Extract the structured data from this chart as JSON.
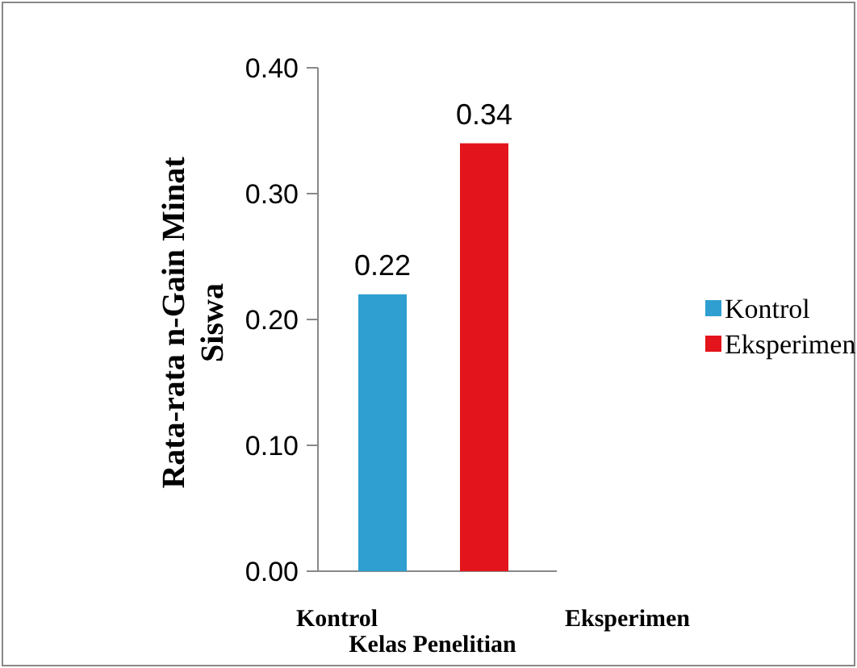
{
  "chart_data": {
    "type": "bar",
    "xlabel": "Kelas Penelitian",
    "ylabel": "Rata-rata  n-Gain Minat Siswa",
    "categories": [
      "Kontrol",
      "Eksperimen"
    ],
    "series": [
      {
        "name": "Kontrol",
        "color": "#2e9fd0",
        "values": [
          0.22,
          null
        ]
      },
      {
        "name": "Eksperimen",
        "color": "#e3141b",
        "values": [
          null,
          0.34
        ]
      }
    ],
    "ylim": [
      0,
      0.4
    ],
    "yticks": [
      {
        "value": 0,
        "label": "0.00"
      },
      {
        "value": 0.1,
        "label": "0.10"
      },
      {
        "value": 0.2,
        "label": "0.20"
      },
      {
        "value": 0.3,
        "label": "0.30"
      },
      {
        "value": 0.4,
        "label": "0.40"
      }
    ],
    "data_labels": true,
    "legend": "right",
    "grid": false
  }
}
